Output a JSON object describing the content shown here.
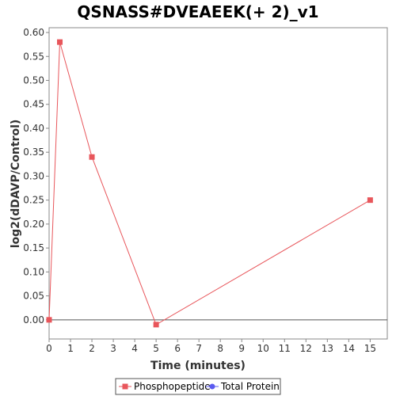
{
  "chart_data": {
    "type": "line",
    "title": "QSNASS#DVEAEEK(+ 2)_v1",
    "xlabel": "Time (minutes)",
    "ylabel": "log2(dDAVP/Control)",
    "xlim": [
      0,
      15.8
    ],
    "ylim": [
      -0.04,
      0.61
    ],
    "x_ticks": [
      "0",
      "1",
      "2",
      "3",
      "4",
      "5",
      "6",
      "7",
      "8",
      "9",
      "10",
      "11",
      "12",
      "13",
      "14",
      "15"
    ],
    "y_ticks": [
      "0.00",
      "0.05",
      "0.10",
      "0.15",
      "0.20",
      "0.25",
      "0.30",
      "0.35",
      "0.40",
      "0.45",
      "0.50",
      "0.55",
      "0.60"
    ],
    "grid": false,
    "zero_line": true,
    "legend_position": "bottom",
    "series": [
      {
        "name": "Phosphopeptide",
        "color": "#e8565b",
        "marker": "square",
        "x": [
          0,
          0.5,
          2,
          5,
          15
        ],
        "y": [
          0.0,
          0.58,
          0.34,
          -0.01,
          0.25
        ]
      },
      {
        "name": "Total Protein",
        "color": "#5b5bf0",
        "marker": "circle",
        "x": [],
        "y": []
      }
    ]
  }
}
